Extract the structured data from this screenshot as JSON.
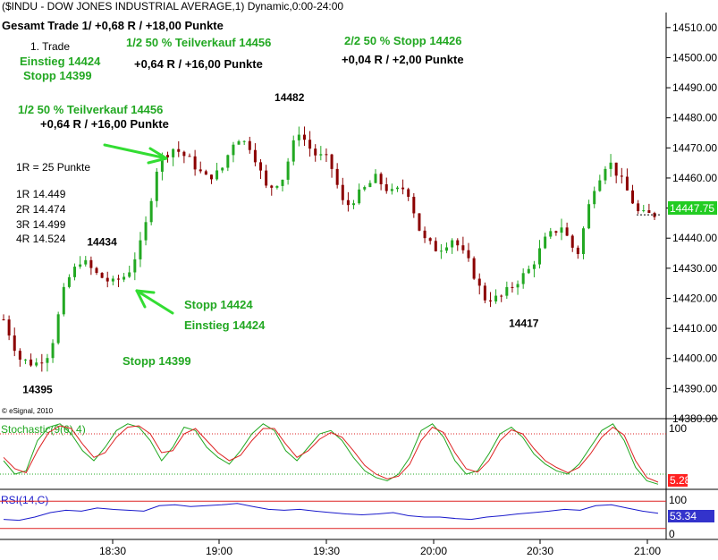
{
  "header": {
    "title": "($INDU - DOW JONES INDUSTRIAL AVERAGE,1) Dynamic,0:00-24:00"
  },
  "chart_data": [
    {
      "type": "candlestick",
      "title": "($INDU - DOW JONES INDUSTRIAL AVERAGE,1) Dynamic,0:00-24:00",
      "ylim": [
        14380,
        14515
      ],
      "y_ticks": [
        "14510.00",
        "14500.00",
        "14490.00",
        "14480.00",
        "14470.00",
        "14460.00",
        "14450.00",
        "14440.00",
        "14430.00",
        "14420.00",
        "14410.00",
        "14400.00",
        "14390.00",
        "14380.00"
      ],
      "x_ticks": [
        "18:30",
        "19:00",
        "19:30",
        "20:00",
        "20:30",
        "21:00"
      ],
      "last_price": "14447.75",
      "watermark": "© eSignal, 2010",
      "extremes": [
        {
          "label": "14395",
          "value": 14395
        },
        {
          "label": "14434",
          "value": 14434
        },
        {
          "label": "14482",
          "value": 14482
        },
        {
          "label": "14417",
          "value": 14417
        }
      ],
      "path": [
        14413,
        14400,
        14398,
        14402,
        14425,
        14433,
        14428,
        14425,
        14428,
        14440,
        14466,
        14470,
        14466,
        14460,
        14462,
        14474,
        14470,
        14456,
        14460,
        14476,
        14468,
        14466,
        14450,
        14455,
        14460,
        14455,
        14457,
        14440,
        14436,
        14440,
        14432,
        14420,
        14420,
        14425,
        14430,
        14440,
        14444,
        14434,
        14456,
        14466,
        14458,
        14448,
        14447.75
      ]
    },
    {
      "type": "line",
      "title": "Stochastic(9(6),4)",
      "ylim": [
        0,
        100
      ],
      "y_ticks": [
        "100",
        "0"
      ],
      "last_value": "5.28",
      "series": [
        {
          "name": "%K",
          "values": [
            40,
            20,
            25,
            70,
            90,
            95,
            80,
            55,
            40,
            60,
            85,
            95,
            90,
            70,
            40,
            60,
            90,
            85,
            60,
            45,
            35,
            55,
            80,
            95,
            85,
            55,
            40,
            60,
            80,
            85,
            70,
            45,
            25,
            15,
            10,
            20,
            45,
            85,
            95,
            75,
            40,
            20,
            25,
            50,
            80,
            90,
            75,
            50,
            35,
            25,
            20,
            35,
            60,
            85,
            95,
            70,
            30,
            10,
            5
          ]
        },
        {
          "name": "%D",
          "values": [
            45,
            28,
            22,
            55,
            82,
            92,
            88,
            65,
            45,
            52,
            75,
            90,
            92,
            80,
            52,
            55,
            80,
            88,
            70,
            52,
            40,
            48,
            70,
            88,
            88,
            65,
            45,
            55,
            72,
            82,
            75,
            55,
            33,
            20,
            13,
            17,
            35,
            70,
            90,
            82,
            52,
            28,
            23,
            40,
            70,
            86,
            80,
            58,
            40,
            30,
            22,
            30,
            50,
            75,
            90,
            78,
            40,
            15,
            8
          ]
        }
      ],
      "ref_lines": [
        80,
        20
      ]
    },
    {
      "type": "line",
      "title": "RSI(14,C)",
      "ylim": [
        0,
        100
      ],
      "y_ticks": [
        "100",
        "0"
      ],
      "last_value": "53.34",
      "series": [
        {
          "name": "RSI",
          "values": [
            40,
            38,
            45,
            55,
            60,
            58,
            65,
            62,
            60,
            58,
            70,
            72,
            68,
            70,
            72,
            75,
            68,
            62,
            60,
            62,
            58,
            55,
            52,
            50,
            52,
            55,
            48,
            45,
            45,
            42,
            40,
            45,
            48,
            52,
            55,
            58,
            62,
            60,
            70,
            72,
            65,
            58,
            53.34
          ]
        }
      ],
      "ref_lines": [
        80,
        20
      ]
    }
  ],
  "annotations": {
    "summary": "Gesamt Trade 1/ +0,68 R / +18,00 Punkte",
    "trade_label": "1. Trade",
    "entry_1": "Einstieg 14424",
    "stop_1": "Stopp 14399",
    "partial_a": "1/2 50 % Teilverkauf 14456",
    "partial_a_result": "+0,64 R / +16,00 Punkte",
    "final_stop": "2/2 50 % Stopp 14426",
    "final_result": "+0,04 R / +2,00 Punkte",
    "partial_b": "1/2 50 % Teilverkauf 14456",
    "partial_b_result": "+0,64 R / +16,00 Punkte",
    "r_def": "1R = 25 Punkte",
    "r_levels": [
      "1R 14.449",
      "2R 14.474",
      "3R 14.499",
      "4R 14.524"
    ],
    "stop_2": "Stopp 14424",
    "entry_2": "Einstieg 14424",
    "stop_3": "Stopp 14399"
  },
  "colors": {
    "up": "#22a822",
    "down": "#8b0000",
    "rsi": "#1a1acc",
    "stoch_k": "#22a822",
    "stoch_d": "#dd2222",
    "annotation": "#22a822",
    "price_tag": "#22cc22",
    "value_tag": "#ff2222"
  }
}
